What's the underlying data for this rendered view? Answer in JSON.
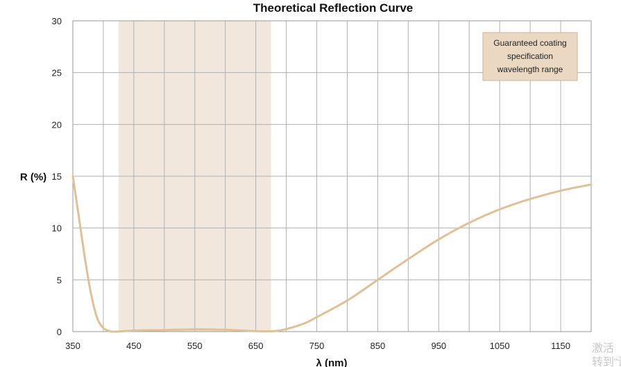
{
  "chart_data": {
    "type": "line",
    "title": "Theoretical Reflection Curve",
    "xlabel": "λ (nm)",
    "ylabel": "R (%)",
    "xlim": [
      350,
      1200
    ],
    "ylim": [
      0,
      30
    ],
    "x_ticks": [
      350,
      450,
      550,
      650,
      750,
      850,
      950,
      1050,
      1150
    ],
    "y_ticks": [
      0,
      5,
      10,
      15,
      20,
      25,
      30
    ],
    "grid": true,
    "legend_position": "top-right",
    "highlight_band": {
      "x_range": [
        425,
        675
      ],
      "label": "Guaranteed coating specification wavelength range",
      "label_lines": [
        "Guaranteed coating",
        "specification",
        "wavelength range"
      ],
      "color": "#f2e7dc",
      "legend_color": "#ead8c3"
    },
    "series": [
      {
        "color": "#dfc196",
        "points": [
          [
            350,
            15.0
          ],
          [
            360,
            11.0
          ],
          [
            370,
            7.0
          ],
          [
            380,
            3.6
          ],
          [
            390,
            1.3
          ],
          [
            400,
            0.35
          ],
          [
            410,
            0.05
          ],
          [
            420,
            0.0
          ],
          [
            450,
            0.1
          ],
          [
            500,
            0.15
          ],
          [
            550,
            0.22
          ],
          [
            600,
            0.18
          ],
          [
            650,
            0.05
          ],
          [
            680,
            0.05
          ],
          [
            700,
            0.25
          ],
          [
            730,
            0.8
          ],
          [
            750,
            1.4
          ],
          [
            800,
            3.0
          ],
          [
            850,
            5.0
          ],
          [
            900,
            7.0
          ],
          [
            950,
            8.9
          ],
          [
            1000,
            10.5
          ],
          [
            1050,
            11.8
          ],
          [
            1100,
            12.8
          ],
          [
            1150,
            13.6
          ],
          [
            1200,
            14.2
          ]
        ]
      }
    ]
  },
  "watermark": {
    "line1": "激活",
    "line2": "转到“设"
  }
}
